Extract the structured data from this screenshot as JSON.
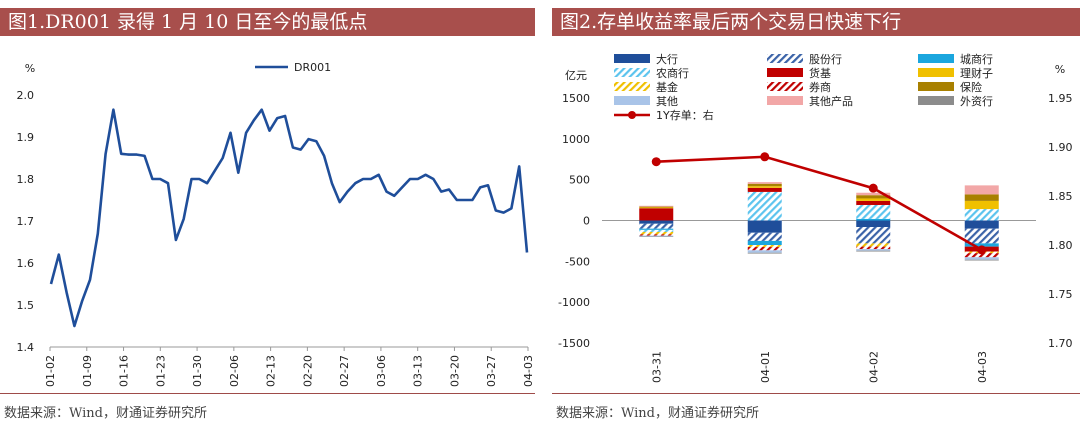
{
  "panel1": {
    "title": "图1.DR001 录得 1 月 10 日至今的最低点",
    "source": "数据来源：Wind，财通证券研究所"
  },
  "panel2": {
    "title": "图2.存单收益率最后两个交易日快速下行",
    "source": "数据来源：Wind，财通证券研究所"
  },
  "colors": {
    "header_bg": "#A84F4C",
    "line1": "#1F4E9A",
    "line2": "#C00000"
  },
  "chart_data": [
    {
      "type": "line",
      "ylabel": "%",
      "ylim": [
        1.4,
        2.0
      ],
      "yticks": [
        "1.4",
        "1.5",
        "1.6",
        "1.7",
        "1.8",
        "1.9",
        "2.0"
      ],
      "xticks": [
        "01-02",
        "01-09",
        "01-16",
        "01-23",
        "01-30",
        "02-06",
        "02-13",
        "02-20",
        "02-27",
        "03-06",
        "03-13",
        "03-20",
        "03-27",
        "04-03"
      ],
      "legend": [
        "DR001"
      ],
      "legend_position": "top-center",
      "series": [
        {
          "name": "DR001",
          "values": [
            1.55,
            1.62,
            1.53,
            1.45,
            1.51,
            1.56,
            1.67,
            1.86,
            1.965,
            1.86,
            1.858,
            1.858,
            1.855,
            1.8,
            1.8,
            1.79,
            1.655,
            1.705,
            1.8,
            1.8,
            1.79,
            1.82,
            1.85,
            1.91,
            1.815,
            1.91,
            1.94,
            1.965,
            1.915,
            1.945,
            1.95,
            1.875,
            1.87,
            1.895,
            1.89,
            1.855,
            1.79,
            1.745,
            1.77,
            1.79,
            1.8,
            1.8,
            1.81,
            1.77,
            1.76,
            1.78,
            1.8,
            1.8,
            1.81,
            1.8,
            1.77,
            1.775,
            1.75,
            1.75,
            1.75,
            1.78,
            1.785,
            1.725,
            1.72,
            1.73,
            1.83,
            1.625
          ]
        }
      ]
    },
    {
      "type": "bar",
      "stacked": true,
      "ylabel_left": "亿元",
      "ylabel_right": "%",
      "ylim_left": [
        -1500,
        1500
      ],
      "ylim_right": [
        1.7,
        1.95
      ],
      "yticks_left": [
        "1500",
        "1000",
        "500",
        "0",
        "-500",
        "-1000",
        "-1500"
      ],
      "yticks_right": [
        "1.95",
        "1.90",
        "1.85",
        "1.80",
        "1.75",
        "1.70"
      ],
      "categories": [
        "03-31",
        "04-01",
        "04-02",
        "04-03"
      ],
      "legend_position": "top",
      "series": [
        {
          "name": "大行",
          "color": "#1F4E9A",
          "pattern": "solid",
          "values": [
            -40,
            -150,
            -80,
            -100
          ]
        },
        {
          "name": "股份行",
          "color": "#3B63A8",
          "pattern": "hatch",
          "values": [
            -60,
            -100,
            -200,
            -180
          ]
        },
        {
          "name": "城商行",
          "color": "#1BA6DE",
          "pattern": "solid",
          "values": [
            -15,
            -50,
            20,
            -40
          ]
        },
        {
          "name": "农商行",
          "color": "#5CC4EE",
          "pattern": "hatch",
          "values": [
            -25,
            350,
            170,
            140
          ]
        },
        {
          "name": "货基",
          "color": "#C00000",
          "pattern": "solid",
          "values": [
            150,
            50,
            50,
            -60
          ]
        },
        {
          "name": "理财子",
          "color": "#F0C000",
          "pattern": "solid",
          "values": [
            10,
            20,
            30,
            100
          ]
        },
        {
          "name": "基金",
          "color": "#F0C000",
          "pattern": "hatch",
          "values": [
            -30,
            -25,
            -40,
            -20
          ]
        },
        {
          "name": "券商",
          "color": "#C00000",
          "pattern": "hatch",
          "values": [
            -15,
            -40,
            -30,
            -50
          ]
        },
        {
          "name": "保险",
          "color": "#A88000",
          "pattern": "solid",
          "values": [
            10,
            30,
            40,
            80
          ]
        },
        {
          "name": "其他",
          "color": "#A9C4E8",
          "pattern": "solid",
          "values": [
            -10,
            -30,
            -20,
            -30
          ]
        },
        {
          "name": "其他产品",
          "color": "#F2A7A7",
          "pattern": "solid",
          "values": [
            10,
            20,
            30,
            110
          ]
        },
        {
          "name": "外资行",
          "color": "#8C8C8C",
          "pattern": "solid",
          "values": [
            -5,
            -10,
            -10,
            -10
          ]
        }
      ],
      "line_series": {
        "name": "1Y存单：右",
        "color": "#C00000",
        "values": [
          1.885,
          1.89,
          1.858,
          1.795
        ]
      }
    }
  ]
}
